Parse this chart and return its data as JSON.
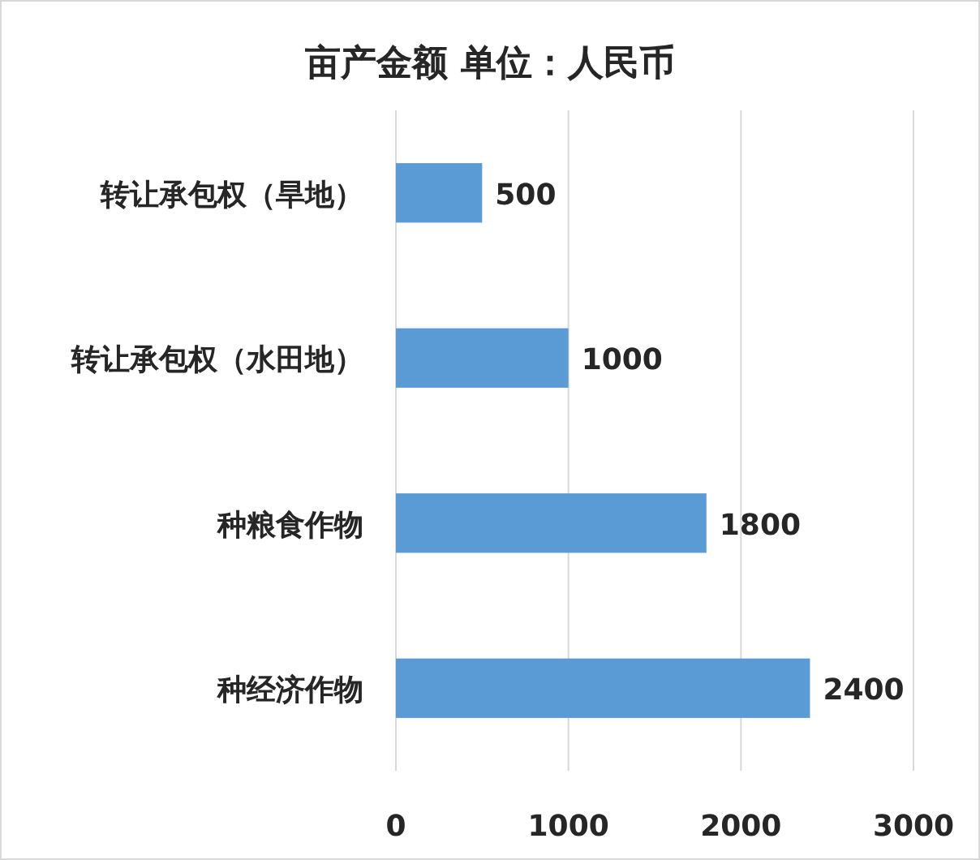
{
  "chart_data": {
    "type": "bar",
    "orientation": "horizontal",
    "title": "亩产金额 单位：人民币",
    "categories": [
      "转让承包权（旱地）",
      "转让承包权（水田地）",
      "种粮食作物",
      "种经济作物"
    ],
    "values": [
      500,
      1000,
      1800,
      2400
    ],
    "color": "#5b9bd5",
    "xlim": [
      0,
      3000
    ],
    "xticks": [
      0,
      1000,
      2000,
      3000
    ],
    "grid": "x",
    "data_labels": true
  }
}
